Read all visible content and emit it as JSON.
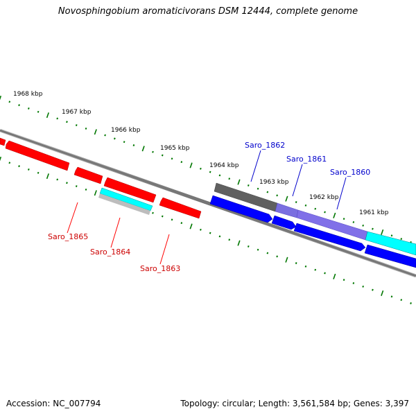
{
  "title": "Novosphingobium aromaticivorans DSM 12444, complete genome",
  "footer": {
    "accession": "Accession: NC_007794",
    "summary": "Topology: circular; Length: 3,561,584 bp; Genes: 3,397"
  },
  "kbp_labels": [
    "1968 kbp",
    "1967 kbp",
    "1966 kbp",
    "1965 kbp",
    "1964 kbp",
    "1963 kbp",
    "1962 kbp",
    "1961 kbp"
  ],
  "gene_labels": {
    "saro_1865": "Saro_1865",
    "saro_1864": "Saro_1864",
    "saro_1863": "Saro_1863",
    "saro_1862": "Saro_1862",
    "saro_1861": "Saro_1861",
    "saro_1860": "Saro_1860"
  },
  "colors": {
    "reverse_strand": "#ff0000",
    "forward_strand": "#0000ff",
    "highlight": "#00ffff",
    "label_reverse": "#cc0000",
    "label_forward": "#0000cc",
    "ticks": "#007700"
  }
}
